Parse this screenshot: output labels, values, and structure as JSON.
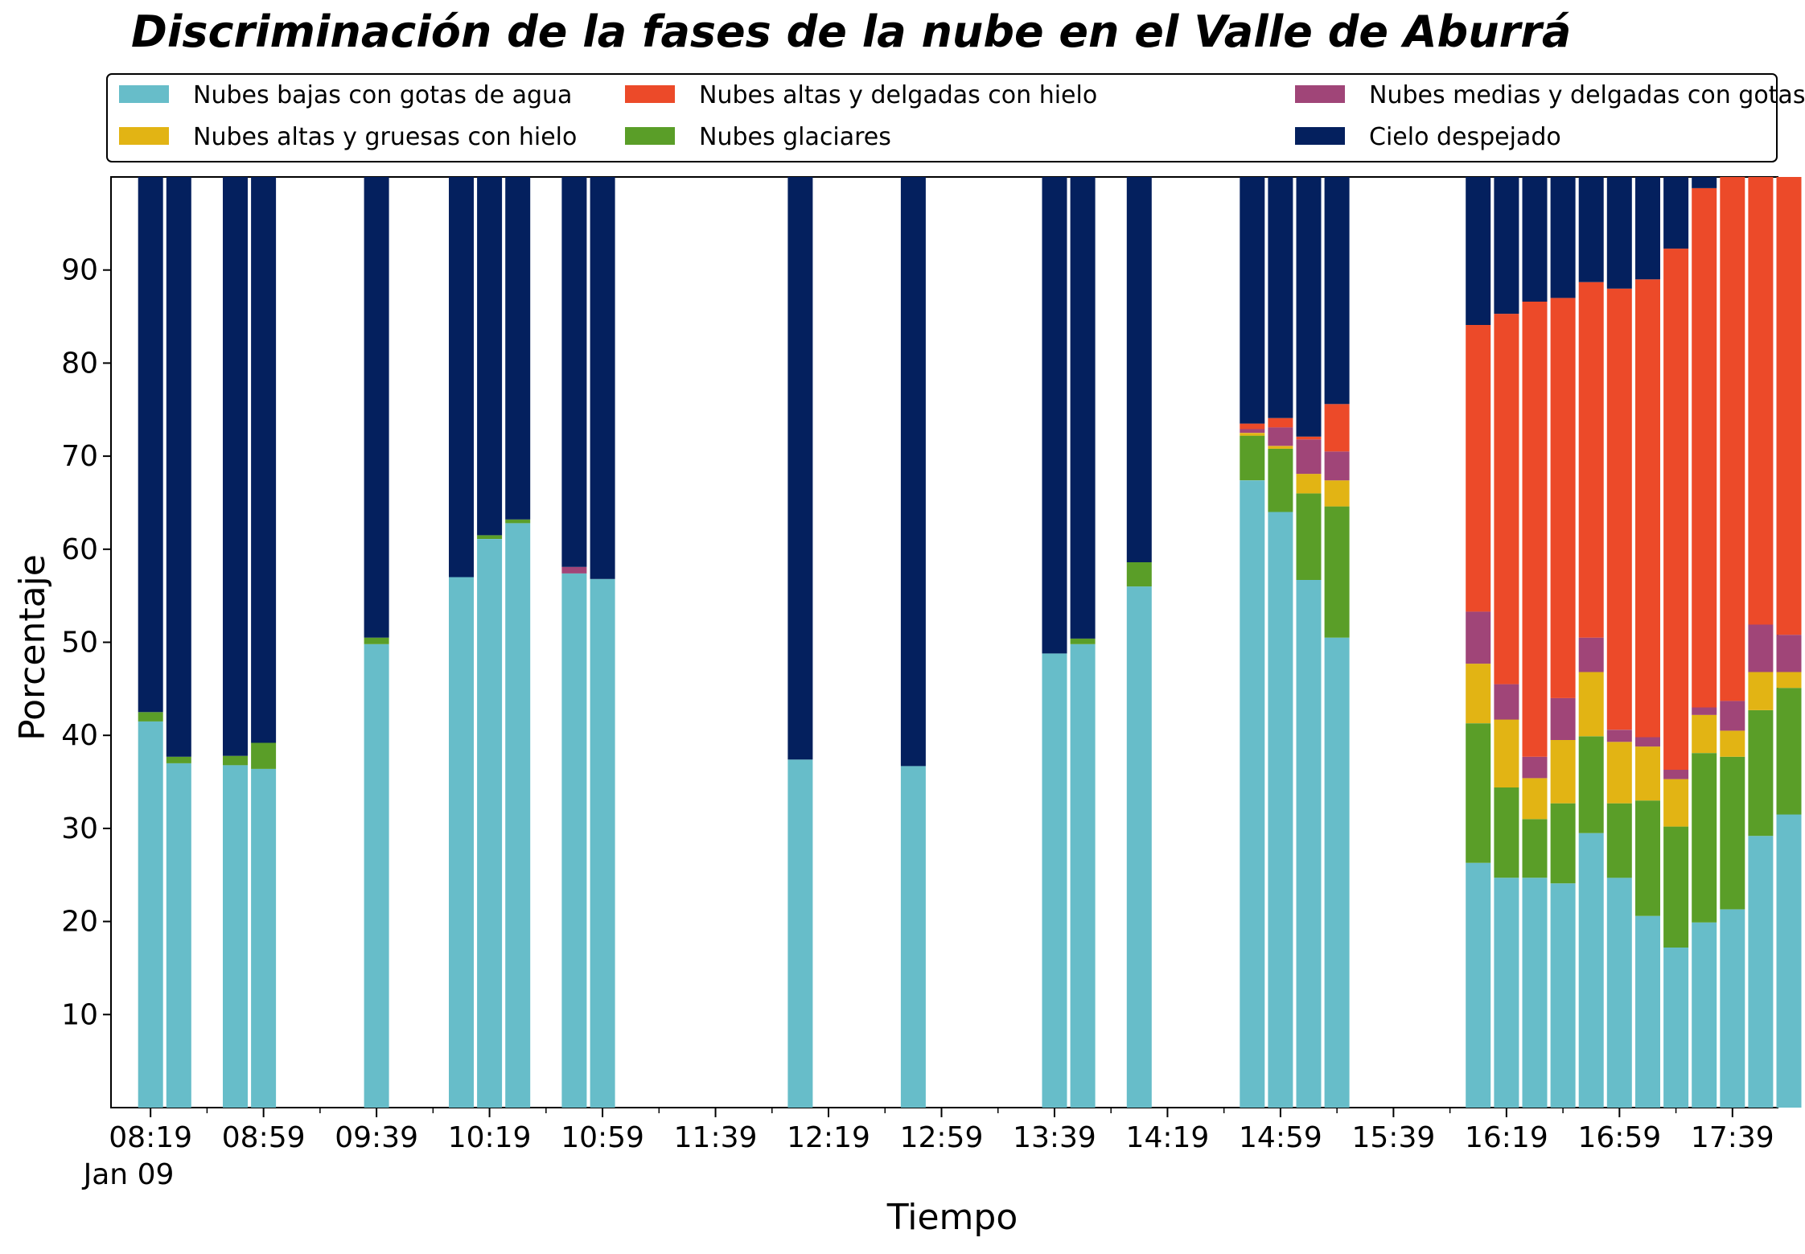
{
  "chart_data": {
    "type": "bar",
    "stacked": true,
    "title": "Discriminación de la fases de la nube en el Valle de Aburrá",
    "xlabel": "Tiempo",
    "ylabel": "Porcentaje",
    "ylim": [
      0,
      100
    ],
    "y_ticks": [
      "10",
      "20",
      "30",
      "40",
      "50",
      "60",
      "70",
      "80",
      "90"
    ],
    "x_range_minutes": [
      485,
      1075
    ],
    "x_tick_labels": [
      "08:19",
      "08:59",
      "09:39",
      "10:19",
      "10:59",
      "11:39",
      "12:19",
      "12:59",
      "13:39",
      "14:19",
      "14:59",
      "15:39",
      "16:19",
      "16:59",
      "17:39"
    ],
    "x_date_label": "Jan 09",
    "legend_position": "top",
    "series": [
      {
        "name": "Nubes bajas con gotas de agua",
        "color": "#67BDC9"
      },
      {
        "name": "Nubes glaciares",
        "color": "#5A9E28"
      },
      {
        "name": "Nubes altas y gruesas con hielo",
        "color": "#E2B414"
      },
      {
        "name": "Nubes medias y delgadas con gotas de agua",
        "color": "#A04578"
      },
      {
        "name": "Nubes altas y delgadas con hielo",
        "color": "#EC4A29"
      },
      {
        "name": "Cielo despejado",
        "color": "#04205E"
      }
    ],
    "legend_order": [
      0,
      2,
      4,
      1,
      3,
      5
    ],
    "bars": [
      {
        "time": "08:19",
        "values": [
          41.5,
          1.0,
          0,
          0,
          0,
          57.5
        ]
      },
      {
        "time": "08:29",
        "values": [
          37.0,
          0.7,
          0,
          0,
          0,
          62.3
        ]
      },
      {
        "time": "08:49",
        "values": [
          36.8,
          1.0,
          0,
          0,
          0,
          62.2
        ]
      },
      {
        "time": "08:59",
        "values": [
          36.4,
          2.8,
          0,
          0,
          0,
          60.8
        ]
      },
      {
        "time": "09:39",
        "values": [
          49.8,
          0.7,
          0,
          0,
          0,
          49.5
        ]
      },
      {
        "time": "10:09",
        "values": [
          57.0,
          0,
          0,
          0,
          0,
          43.0
        ]
      },
      {
        "time": "10:19",
        "values": [
          61.1,
          0.4,
          0,
          0,
          0,
          38.5
        ]
      },
      {
        "time": "10:29",
        "values": [
          62.8,
          0.4,
          0,
          0,
          0,
          36.8
        ]
      },
      {
        "time": "10:49",
        "values": [
          57.4,
          0,
          0,
          0.7,
          0,
          41.9
        ]
      },
      {
        "time": "10:59",
        "values": [
          56.8,
          0,
          0,
          0,
          0,
          43.2
        ]
      },
      {
        "time": "12:09",
        "values": [
          37.4,
          0,
          0,
          0,
          0,
          62.6
        ]
      },
      {
        "time": "12:49",
        "values": [
          36.7,
          0,
          0,
          0,
          0,
          63.3
        ]
      },
      {
        "time": "13:39",
        "values": [
          48.8,
          0,
          0,
          0,
          0,
          51.2
        ]
      },
      {
        "time": "13:49",
        "values": [
          49.8,
          0.6,
          0,
          0,
          0,
          49.6
        ]
      },
      {
        "time": "14:09",
        "values": [
          56.0,
          2.6,
          0,
          0,
          0,
          41.4
        ]
      },
      {
        "time": "14:49",
        "values": [
          67.4,
          4.8,
          0.3,
          0.4,
          0.6,
          26.5
        ]
      },
      {
        "time": "14:59",
        "values": [
          64.0,
          6.8,
          0.3,
          2.0,
          1.0,
          25.9
        ]
      },
      {
        "time": "15:09",
        "values": [
          56.7,
          9.3,
          2.1,
          3.7,
          0.3,
          27.9
        ]
      },
      {
        "time": "15:19",
        "values": [
          50.5,
          14.1,
          2.8,
          3.1,
          5.1,
          24.4
        ]
      },
      {
        "time": "16:09",
        "values": [
          26.3,
          15.0,
          6.4,
          5.6,
          30.8,
          15.9
        ]
      },
      {
        "time": "16:19",
        "values": [
          24.7,
          9.7,
          7.3,
          3.8,
          39.8,
          14.7
        ]
      },
      {
        "time": "16:29",
        "values": [
          24.7,
          6.3,
          4.4,
          2.3,
          48.9,
          13.4
        ]
      },
      {
        "time": "16:39",
        "values": [
          24.1,
          8.6,
          6.8,
          4.5,
          43.0,
          13.0
        ]
      },
      {
        "time": "16:49",
        "values": [
          29.5,
          10.4,
          6.9,
          3.7,
          38.2,
          11.3
        ]
      },
      {
        "time": "16:59",
        "values": [
          24.7,
          8.0,
          6.6,
          1.3,
          47.4,
          12.0
        ]
      },
      {
        "time": "17:09",
        "values": [
          20.6,
          12.4,
          5.8,
          1.0,
          49.2,
          11.0
        ]
      },
      {
        "time": "17:19",
        "values": [
          17.2,
          13.0,
          5.1,
          1.0,
          56.0,
          7.7
        ]
      },
      {
        "time": "17:29",
        "values": [
          19.9,
          18.2,
          4.1,
          0.8,
          55.8,
          1.2
        ]
      },
      {
        "time": "17:39",
        "values": [
          21.3,
          16.4,
          2.8,
          3.2,
          56.3,
          0
        ]
      },
      {
        "time": "17:49",
        "values": [
          29.2,
          13.5,
          4.1,
          5.1,
          48.1,
          0
        ]
      },
      {
        "time": "17:59",
        "values": [
          31.5,
          13.6,
          1.7,
          4.0,
          49.2,
          0
        ]
      }
    ]
  }
}
